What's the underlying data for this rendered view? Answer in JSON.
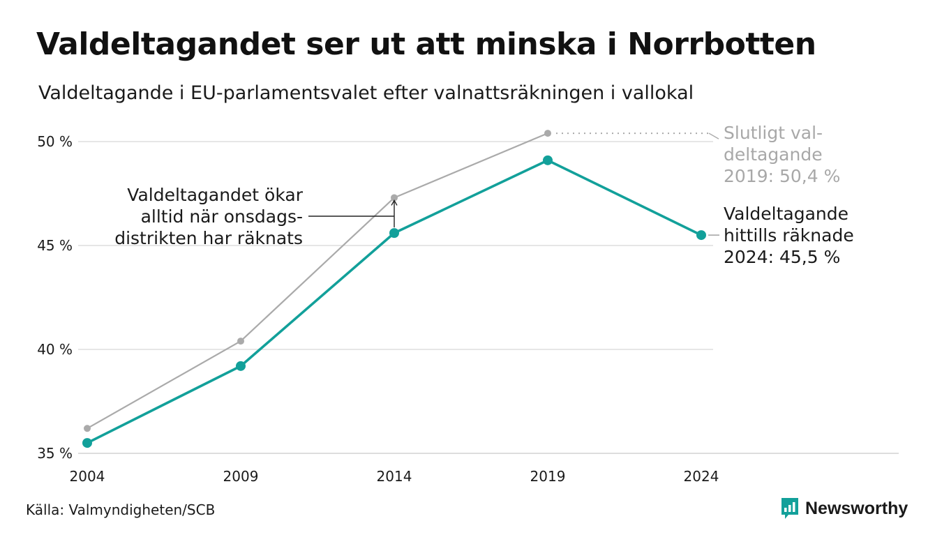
{
  "title": "Valdeltagandet ser ut att minska i Norrbotten",
  "subtitle": "Valdeltagande i EU-parlamentsvalet efter valnattsräkningen i vallokal",
  "source": "Källa: Valmyndigheten/SCB",
  "logo": {
    "text": "Newsworthy",
    "icon": "newsworthy-chart-bubble-icon"
  },
  "colors": {
    "counted": "#12a09a",
    "final": "#aaaaaa",
    "grid": "#dddddd",
    "text": "#1a1a1a",
    "muted_text": "#a8a8a8"
  },
  "chart_data": {
    "type": "line",
    "x": [
      2004,
      2009,
      2014,
      2019,
      2024
    ],
    "ylim": [
      35,
      51
    ],
    "y_ticks": [
      35,
      40,
      45,
      50
    ],
    "y_tick_labels": [
      "35 %",
      "40 %",
      "45 %",
      "50 %"
    ],
    "x_tick_labels": [
      "2004",
      "2009",
      "2014",
      "2019",
      "2024"
    ],
    "grid": true,
    "series": [
      {
        "key": "final",
        "values": [
          36.2,
          40.4,
          47.3,
          50.4,
          null
        ]
      },
      {
        "key": "counted",
        "values": [
          35.5,
          39.2,
          45.6,
          49.1,
          45.5
        ]
      }
    ],
    "annotations": {
      "final_label": [
        "Slutligt val-",
        "deltagande",
        "2019: 50,4 %"
      ],
      "counted_label": [
        "Valdeltagande",
        "hittills räknade",
        "2024: 45,5 %"
      ],
      "note": [
        "Valdeltagandet ökar",
        "alltid när onsdags-",
        "distrikten har räknats"
      ],
      "note_year": 2014
    }
  }
}
